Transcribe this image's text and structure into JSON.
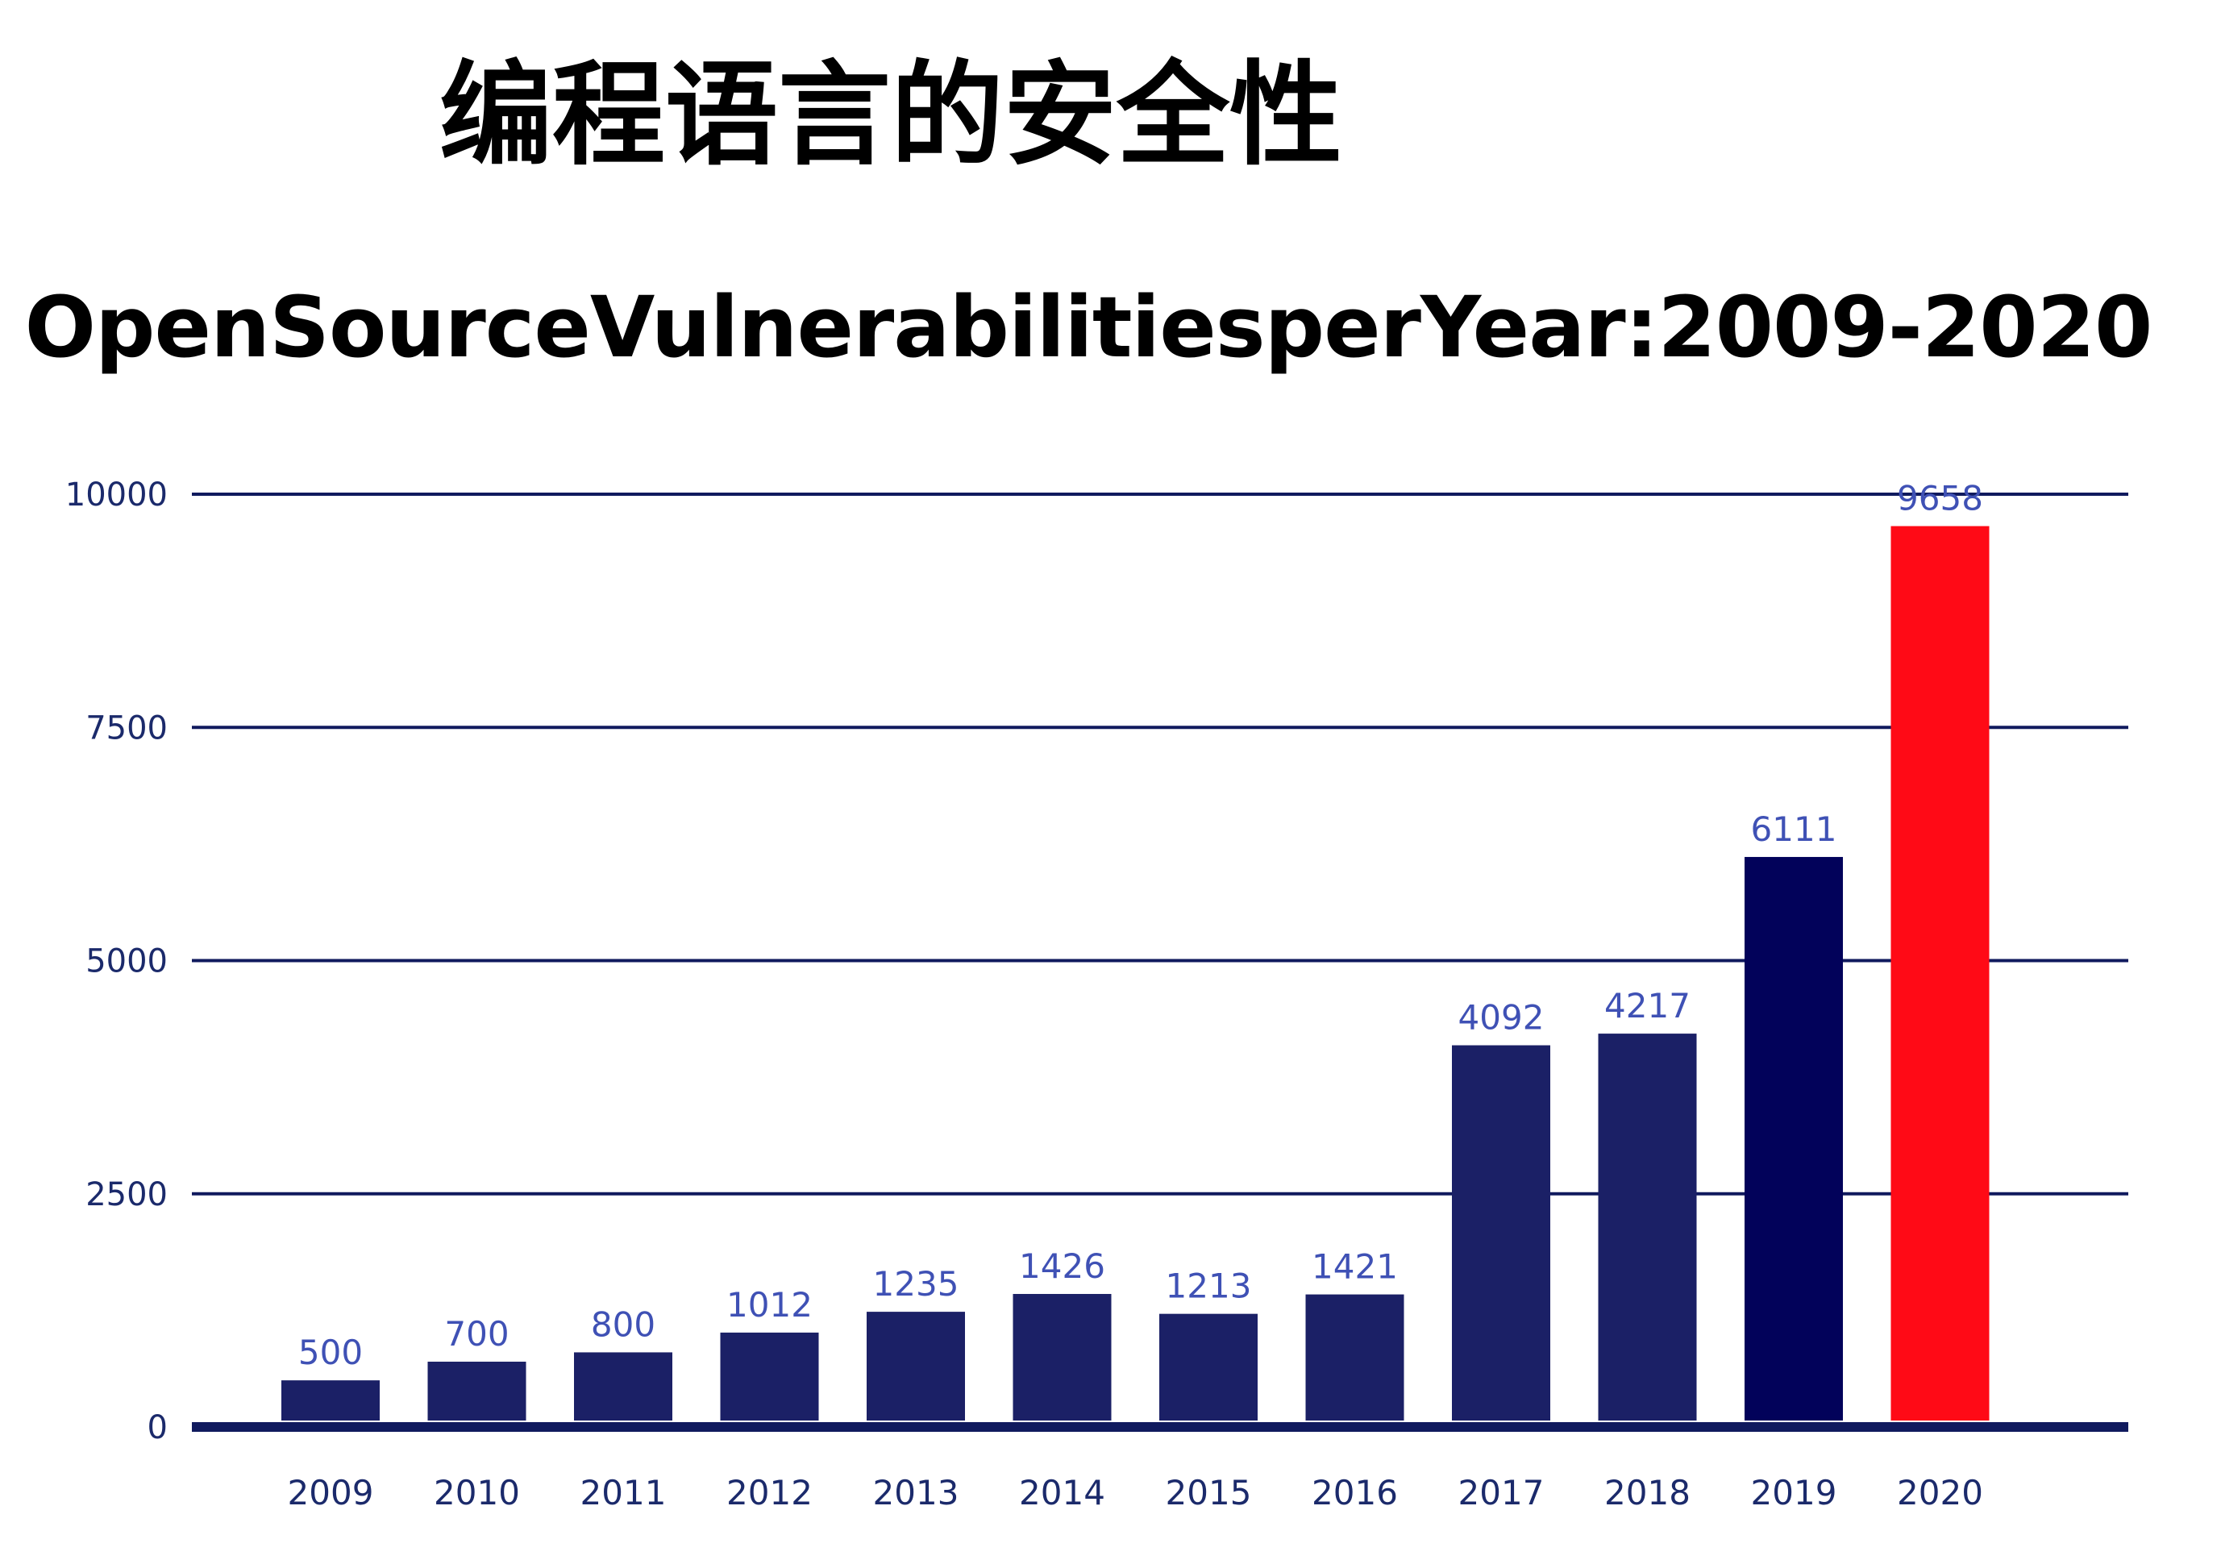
{
  "page_title": "编程语言的安全性",
  "chart_data": {
    "type": "bar",
    "title": "OpenSourceVulnerabilitiesperYear:2009-2020",
    "xlabel": "",
    "ylabel": "",
    "categories": [
      "2009",
      "2010",
      "2011",
      "2012",
      "2013",
      "2014",
      "2015",
      "2016",
      "2017",
      "2018",
      "2019",
      "2020"
    ],
    "values": [
      500,
      700,
      800,
      1012,
      1235,
      1426,
      1213,
      1421,
      4092,
      4217,
      6111,
      9658
    ],
    "data_labels": [
      "500",
      "700",
      "800",
      "1012",
      "1235",
      "1426",
      "1213",
      "1421",
      "4092",
      "4217",
      "6111",
      "9658"
    ],
    "y_ticks": [
      "0",
      "2500",
      "5000",
      "7500",
      "10000"
    ],
    "ylim": [
      0,
      10000
    ],
    "grid": true,
    "legend": "none",
    "colors": {
      "default": "#1b2066",
      "2019": "#02025a",
      "2020": "#ff0a16",
      "gridline": "#101a5e",
      "tick_text": "#1b2a6b",
      "data_label_text": "#3f51b5"
    }
  }
}
